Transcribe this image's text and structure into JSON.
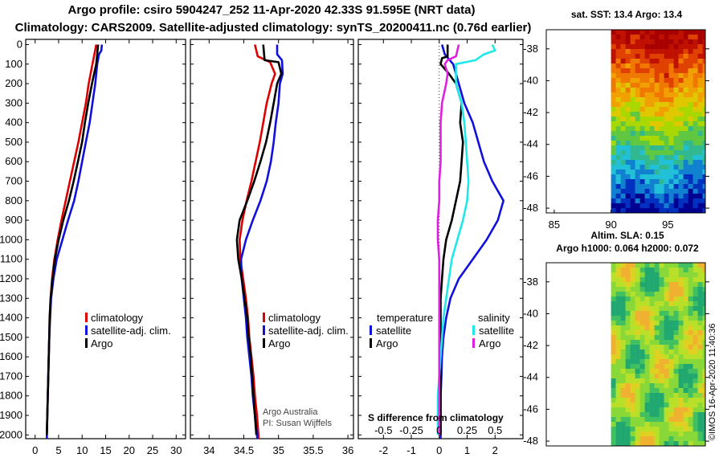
{
  "header": {
    "line1": "Argo profile: csiro 5904247_252 11-Apr-2020 42.33S 91.595E (NRT data)",
    "line2": "Climatology: CARS2009. Satellite-adjusted climatology: synTS_20200411.nc (0.76d earlier)"
  },
  "colors": {
    "climatology": "#dd0000",
    "satellite": "#1010dd",
    "argo": "#000000",
    "satellite_s": "#20e8e8",
    "argo_s": "#e020e0"
  },
  "chart_data": [
    {
      "type": "line",
      "name": "temperature-profile",
      "xlabel": "",
      "ylabel": "depth",
      "xlim": [
        -2,
        32
      ],
      "ylim": [
        2060,
        -20
      ],
      "xticks": [
        0,
        5,
        10,
        15,
        20,
        25,
        30
      ],
      "yticks": [
        0,
        100,
        200,
        300,
        400,
        500,
        600,
        700,
        800,
        900,
        1000,
        1100,
        1200,
        1300,
        1400,
        1500,
        1600,
        1700,
        1800,
        1900,
        2000
      ],
      "legend": [
        "climatology",
        "satellite-adj. clim.",
        "Argo"
      ],
      "series": [
        {
          "name": "climatology",
          "color": "climatology",
          "y": [
            0,
            50,
            100,
            200,
            300,
            400,
            500,
            600,
            700,
            800,
            900,
            1000,
            1100,
            1200,
            1300,
            1400,
            1500,
            1600,
            1700,
            1800,
            1900,
            2000,
            2050
          ],
          "x": [
            13.0,
            12.6,
            12.2,
            11.4,
            10.8,
            10.0,
            9.2,
            8.3,
            7.4,
            6.5,
            5.6,
            4.8,
            4.1,
            3.6,
            3.3,
            3.1,
            3.0,
            2.9,
            2.8,
            2.7,
            2.6,
            2.5,
            2.5
          ]
        },
        {
          "name": "satellite-adj. clim.",
          "color": "satellite",
          "y": [
            0,
            30,
            50,
            100,
            200,
            300,
            400,
            500,
            600,
            700,
            800,
            900,
            1000,
            1100,
            1200,
            1300,
            1400,
            1500,
            1600,
            1700,
            1800,
            1900,
            2000,
            2050
          ],
          "x": [
            14.2,
            14.1,
            13.6,
            13.2,
            12.8,
            12.2,
            11.6,
            10.8,
            10.0,
            9.2,
            8.3,
            7.0,
            5.8,
            4.6,
            3.9,
            3.4,
            3.2,
            3.0,
            2.9,
            2.8,
            2.7,
            2.6,
            2.5,
            2.5
          ]
        },
        {
          "name": "Argo",
          "color": "argo",
          "y": [
            0,
            50,
            100,
            200,
            300,
            400,
            500,
            600,
            700,
            800,
            900,
            1000,
            1100,
            1200,
            1300,
            1400,
            1500,
            1600,
            1700,
            1800,
            1900,
            2000
          ],
          "x": [
            13.4,
            13.2,
            13.0,
            12.1,
            11.3,
            10.6,
            10.0,
            9.1,
            8.2,
            7.2,
            6.0,
            5.0,
            4.2,
            3.7,
            3.3,
            3.1,
            3.0,
            2.9,
            2.8,
            2.7,
            2.6,
            2.5
          ]
        }
      ]
    },
    {
      "type": "line",
      "name": "salinity-profile",
      "xlabel": "",
      "ylabel": "",
      "xlim": [
        33.73,
        36.08
      ],
      "ylim": [
        2060,
        -20
      ],
      "xticks": [
        34,
        34.5,
        35,
        35.5,
        36
      ],
      "legend": [
        "climatology",
        "satellite-adj. clim.",
        "Argo"
      ],
      "footer": [
        "Argo Australia",
        "PI: Susan Wijffels"
      ],
      "series": [
        {
          "name": "climatology",
          "color": "climatology",
          "y": [
            0,
            60,
            90,
            150,
            200,
            300,
            400,
            500,
            600,
            700,
            800,
            900,
            1000,
            1100,
            1200,
            1300,
            1400,
            1500,
            1600,
            1700,
            1800,
            1900,
            2000,
            2050
          ],
          "x": [
            34.66,
            34.7,
            34.88,
            34.95,
            34.9,
            34.83,
            34.78,
            34.73,
            34.67,
            34.61,
            34.54,
            34.48,
            34.44,
            34.45,
            34.49,
            34.53,
            34.56,
            34.58,
            34.61,
            34.64,
            34.66,
            34.69,
            34.71,
            34.72
          ]
        },
        {
          "name": "satellite-adj. clim.",
          "color": "satellite",
          "y": [
            0,
            50,
            80,
            150,
            200,
            300,
            400,
            500,
            600,
            700,
            800,
            900,
            1000,
            1100,
            1200,
            1300,
            1400,
            1500,
            1600,
            1700,
            1800,
            1900,
            2000,
            2050
          ],
          "x": [
            34.98,
            34.98,
            35.05,
            35.06,
            35.02,
            35.0,
            34.96,
            34.93,
            34.89,
            34.83,
            34.74,
            34.63,
            34.53,
            34.46,
            34.47,
            34.5,
            34.53,
            34.55,
            34.58,
            34.61,
            34.63,
            34.66,
            34.69,
            34.7
          ]
        },
        {
          "name": "Argo",
          "color": "argo",
          "y": [
            0,
            80,
            90,
            150,
            200,
            300,
            400,
            500,
            600,
            700,
            800,
            900,
            1000,
            1100,
            1200,
            1300,
            1400,
            1500,
            1600,
            1700,
            1800,
            1900,
            2000
          ],
          "x": [
            34.78,
            34.8,
            35.0,
            35.04,
            34.98,
            34.93,
            34.88,
            34.82,
            34.74,
            34.65,
            34.55,
            34.44,
            34.4,
            34.42,
            34.47,
            34.51,
            34.55,
            34.57,
            34.6,
            34.62,
            34.64,
            34.66,
            34.68
          ]
        }
      ]
    },
    {
      "type": "line",
      "name": "difference-from-climatology",
      "xlabel": "S difference from climatology",
      "xlim": [
        -2.9,
        3.0
      ],
      "ylim": [
        2060,
        -20
      ],
      "xticks": [
        -2,
        -1,
        0,
        1,
        2
      ],
      "top_ticks": [
        "-0.5",
        "-0.25",
        "0",
        "0.25",
        "0.5"
      ],
      "legend_temperature": [
        "temperature",
        "satellite",
        "Argo"
      ],
      "legend_salinity": [
        "salinity",
        "satellite",
        "Argo"
      ],
      "series": [
        {
          "name": "temperature satellite",
          "color": "satellite",
          "y": [
            0,
            50,
            100,
            200,
            300,
            400,
            500,
            600,
            700,
            800,
            900,
            1000,
            1100,
            1200,
            1300,
            1400,
            1500,
            1600,
            1700,
            1800,
            1900,
            2000,
            2050
          ],
          "x": [
            0.1,
            0.2,
            0.5,
            0.7,
            0.9,
            1.2,
            1.4,
            1.6,
            1.9,
            2.3,
            2.1,
            1.7,
            1.2,
            0.7,
            0.4,
            0.25,
            0.15,
            0.1,
            0.08,
            0.05,
            0.05,
            0.05,
            0.05
          ]
        },
        {
          "name": "temperature Argo",
          "color": "argo",
          "y": [
            0,
            60,
            70,
            100,
            150,
            200,
            300,
            400,
            500,
            600,
            700,
            800,
            900,
            1000,
            1100,
            1200,
            1300,
            1400,
            1500,
            1600,
            1700,
            1800,
            1900,
            2000
          ],
          "x": [
            0.3,
            0.3,
            0.1,
            0.05,
            0.35,
            0.6,
            0.8,
            0.75,
            0.85,
            0.8,
            0.75,
            0.6,
            0.45,
            0.25,
            0.15,
            0.1,
            0.05,
            0.05,
            0.05,
            0.05,
            0.05,
            0.05,
            0.05,
            0.05
          ]
        },
        {
          "name": "salinity satellite",
          "color": "satellite_s",
          "y": [
            0,
            30,
            50,
            80,
            100,
            200,
            300,
            400,
            500,
            600,
            700,
            800,
            900,
            1000,
            1100,
            1200,
            1300,
            1400,
            1500,
            1600,
            1700,
            1800,
            1900,
            2000
          ],
          "x": [
            1.9,
            2.0,
            1.6,
            1.3,
            0.6,
            0.6,
            0.8,
            0.9,
            0.95,
            1.0,
            1.05,
            1.0,
            0.85,
            0.65,
            0.45,
            0.35,
            0.25,
            0.15,
            0.1,
            0.05,
            0.0,
            -0.05,
            -0.05,
            -0.05
          ]
        },
        {
          "name": "salinity Argo",
          "color": "argo_s",
          "y": [
            0,
            60,
            80,
            100,
            150,
            200,
            300,
            400,
            500,
            600,
            700,
            800,
            900,
            1000,
            1100,
            1200,
            1300,
            1400,
            1500,
            1600,
            1700,
            1800,
            1900,
            2000
          ],
          "x": [
            0.7,
            0.6,
            0.3,
            0.2,
            0.3,
            0.25,
            0.1,
            0.05,
            0.05,
            0.05,
            0.0,
            0.0,
            -0.05,
            -0.05,
            0.0,
            0.0,
            0.0,
            0.0,
            0.0,
            0.0,
            0.0,
            0.0,
            0.0,
            0.0
          ]
        }
      ]
    },
    {
      "type": "heatmap",
      "name": "sst-map",
      "title": "sat. SST: 13.4 Argo: 13.4",
      "xticks": [
        85,
        90,
        95
      ],
      "yticks": [
        -38,
        -40,
        -42,
        -44,
        -46,
        -48
      ],
      "xlim": [
        84.3,
        98.3
      ],
      "ylim": [
        -48.3,
        -36.8
      ],
      "data_region_lon": [
        90,
        98.3
      ]
    },
    {
      "type": "heatmap",
      "name": "sla-map",
      "title_line1": "Altim. SLA: 0.15",
      "title_line2": "Argo h1000: 0.064 h2000: 0.072",
      "yticks": [
        -38,
        -40,
        -42,
        -44,
        -46,
        -48
      ],
      "ylim": [
        -48.3,
        -36.8
      ],
      "data_region_lon": [
        90,
        98.3
      ]
    }
  ],
  "axis": {
    "depth_ticks": [
      "0",
      "100",
      "200",
      "300",
      "400",
      "500",
      "600",
      "700",
      "800",
      "900",
      "1000",
      "1100",
      "1200",
      "1300",
      "1400",
      "1500",
      "1600",
      "1700",
      "1800",
      "1900",
      "2000"
    ],
    "temp_ticks": [
      "0",
      "5",
      "10",
      "15",
      "20",
      "25",
      "30"
    ],
    "sal_ticks": [
      "34",
      "34.5",
      "35",
      "35.5",
      "36"
    ],
    "diff_ticks": [
      "-2",
      "-1",
      "0",
      "1",
      "2"
    ],
    "map_lat_ticks": [
      "-38",
      "-40",
      "-42",
      "-44",
      "-46",
      "-48"
    ],
    "map_lon_ticks": [
      "85",
      "90",
      "95"
    ]
  },
  "panel1": {
    "legend": [
      "climatology",
      "satellite-adj. clim.",
      "Argo"
    ]
  },
  "panel2": {
    "legend": [
      "climatology",
      "satellite-adj. clim.",
      "Argo"
    ],
    "credit1": "Argo Australia",
    "credit2": "PI: Susan Wijffels"
  },
  "panel3": {
    "temp_title": "temperature",
    "temp_sat": "satellite",
    "temp_argo": "Argo",
    "sal_title": "salinity",
    "sal_sat": "satellite",
    "sal_argo": "Argo",
    "diff_title": "S difference from climatology",
    "top_ticks": [
      "-0.5",
      "-0.25",
      "0",
      "0.25",
      "0.5"
    ]
  },
  "maps": {
    "sst_title": "sat. SST: 13.4 Argo: 13.4",
    "sla_title1": "Altim. SLA: 0.15",
    "sla_title2": "Argo h1000: 0.064 h2000: 0.072"
  },
  "stamp": "©IMOS 16-Apr-2020 11:40:36"
}
